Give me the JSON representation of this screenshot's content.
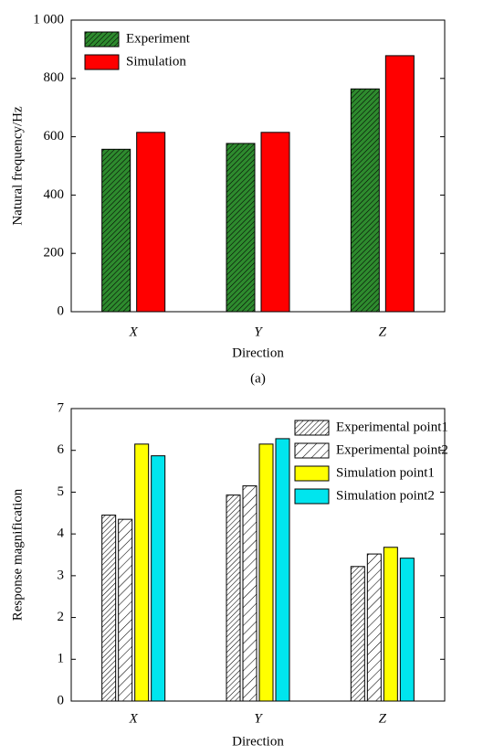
{
  "chart_data": [
    {
      "type": "bar",
      "y_label": "Natural frequency/Hz",
      "x_label": "Direction",
      "annotation": "(a)",
      "categories": [
        "X",
        "Y",
        "Z"
      ],
      "series": [
        {
          "name": "Experiment",
          "color": "#2e8b2e",
          "hatch": "dense",
          "values": [
            557,
            577,
            764
          ]
        },
        {
          "name": "Simulation",
          "color": "#ff0000",
          "values": [
            615,
            615,
            878
          ]
        }
      ],
      "ylim": [
        0,
        1000
      ],
      "yticks": [
        0,
        200,
        400,
        600,
        800,
        {
          "value": 1000,
          "label": "1 000"
        }
      ],
      "grid": false,
      "legend": "upper left"
    },
    {
      "type": "bar",
      "y_label": "Response magnification",
      "x_label": "Direction",
      "categories": [
        "X",
        "Y",
        "Z"
      ],
      "series": [
        {
          "name": "Experimental point1",
          "color": "#ffffff",
          "hatch": "dense",
          "values": [
            4.45,
            4.93,
            3.22
          ]
        },
        {
          "name": "Experimental point2",
          "color": "#ffffff",
          "hatch": "sparse",
          "values": [
            4.35,
            5.15,
            3.52
          ]
        },
        {
          "name": "Simulation point1",
          "color": "#ffff00",
          "values": [
            6.15,
            6.15,
            3.68
          ]
        },
        {
          "name": "Simulation point2",
          "color": "#00e5ee",
          "values": [
            5.87,
            6.28,
            3.42
          ]
        }
      ],
      "ylim": [
        0,
        7
      ],
      "yticks": [
        0,
        1,
        2,
        3,
        4,
        5,
        6,
        7
      ],
      "grid": false,
      "legend": "upper right"
    }
  ]
}
